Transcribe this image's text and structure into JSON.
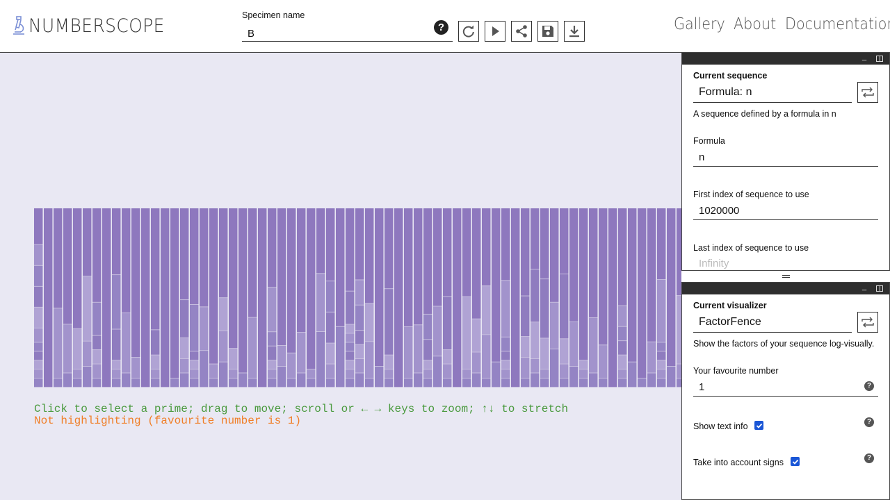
{
  "header": {
    "logo_text": "NUMBERSCOPE",
    "specimen_label": "Specimen name",
    "specimen_value": "B",
    "help_glyph": "?",
    "toolbar": [
      {
        "icon": "refresh-icon",
        "name": "refresh-button"
      },
      {
        "icon": "play-icon",
        "name": "play-button"
      },
      {
        "icon": "share-icon",
        "name": "share-button"
      },
      {
        "icon": "save-icon",
        "name": "save-button"
      },
      {
        "icon": "download-icon",
        "name": "download-button"
      }
    ],
    "nav": [
      "Gallery",
      "About",
      "Documentation"
    ]
  },
  "main": {
    "hint": "Click to select a prime; drag to move; scroll or ← → keys to zoom; ↑↓ to stretch",
    "highlight_status": "Not highlighting (favourite number is 1)",
    "fence_colors": {
      "top": "#8e78be",
      "light": "#c7bedf",
      "background": "#e9e8f3"
    },
    "fence_start": 1020000
  },
  "sequence_panel": {
    "heading": "Current sequence",
    "value": "Formula: n",
    "description": "A sequence defined by a formula in n",
    "formula_label": "Formula",
    "formula_value": "n",
    "first_label": "First index of sequence to use",
    "first_value": "1020000",
    "last_label": "Last index of sequence to use",
    "last_placeholder": "Infinity"
  },
  "visualizer_panel": {
    "heading": "Current visualizer",
    "value": "FactorFence",
    "description": "Show the factors of your sequence log-visually.",
    "fav_label": "Your favourite number",
    "fav_value": "1",
    "show_text_label": "Show text info",
    "show_text_checked": true,
    "signs_label": "Take into account signs",
    "signs_checked": true
  }
}
